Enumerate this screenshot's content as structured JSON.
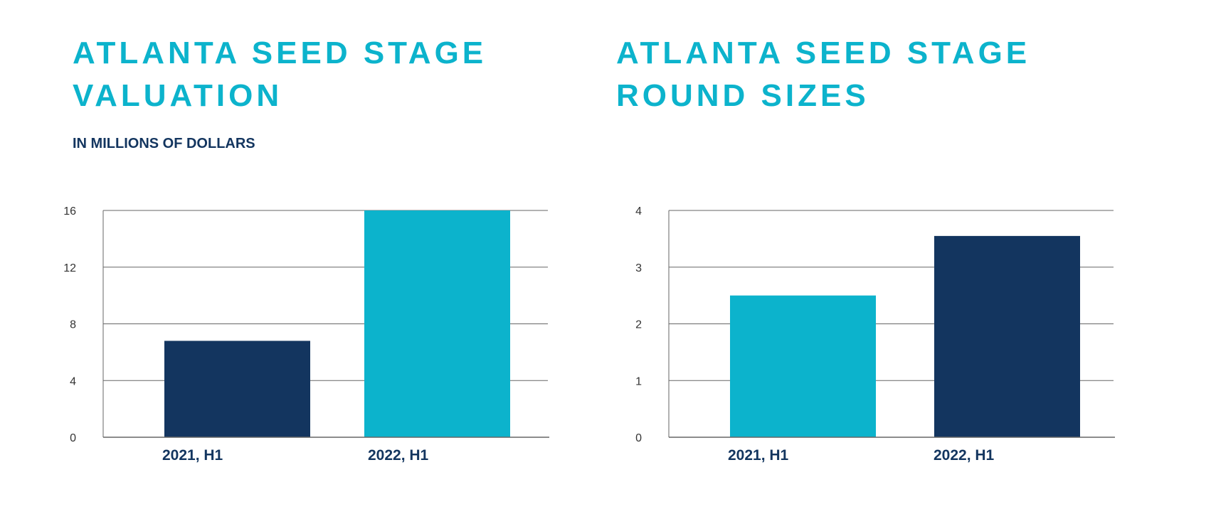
{
  "colors": {
    "title": "#0cb3cc",
    "subtitle": "#13355f",
    "cyan": "#0cb3cc",
    "navy": "#13355f",
    "grid": "#666666"
  },
  "chart_data": [
    {
      "type": "bar",
      "title_lines": [
        "ATLANTA SEED STAGE",
        "VALUATION"
      ],
      "subtitle": "IN MILLIONS OF DOLLARS",
      "categories": [
        "2021, H1",
        "2022, H1"
      ],
      "values": [
        6.8,
        16
      ],
      "bar_colors": [
        "#13355f",
        "#0cb3cc"
      ],
      "ylim": [
        0,
        16
      ],
      "yticks": [
        "0",
        "4",
        "8",
        "12",
        "16"
      ],
      "grid": true,
      "legend": "none"
    },
    {
      "type": "bar",
      "title_lines": [
        "ATLANTA SEED STAGE",
        "ROUND SIZES"
      ],
      "categories": [
        "2021, H1",
        "2022, H1"
      ],
      "values": [
        2.5,
        3.55
      ],
      "bar_colors": [
        "#0cb3cc",
        "#13355f"
      ],
      "ylim": [
        0,
        4
      ],
      "yticks": [
        "0",
        "1",
        "2",
        "3",
        "4"
      ],
      "grid": true,
      "legend": "none"
    }
  ]
}
